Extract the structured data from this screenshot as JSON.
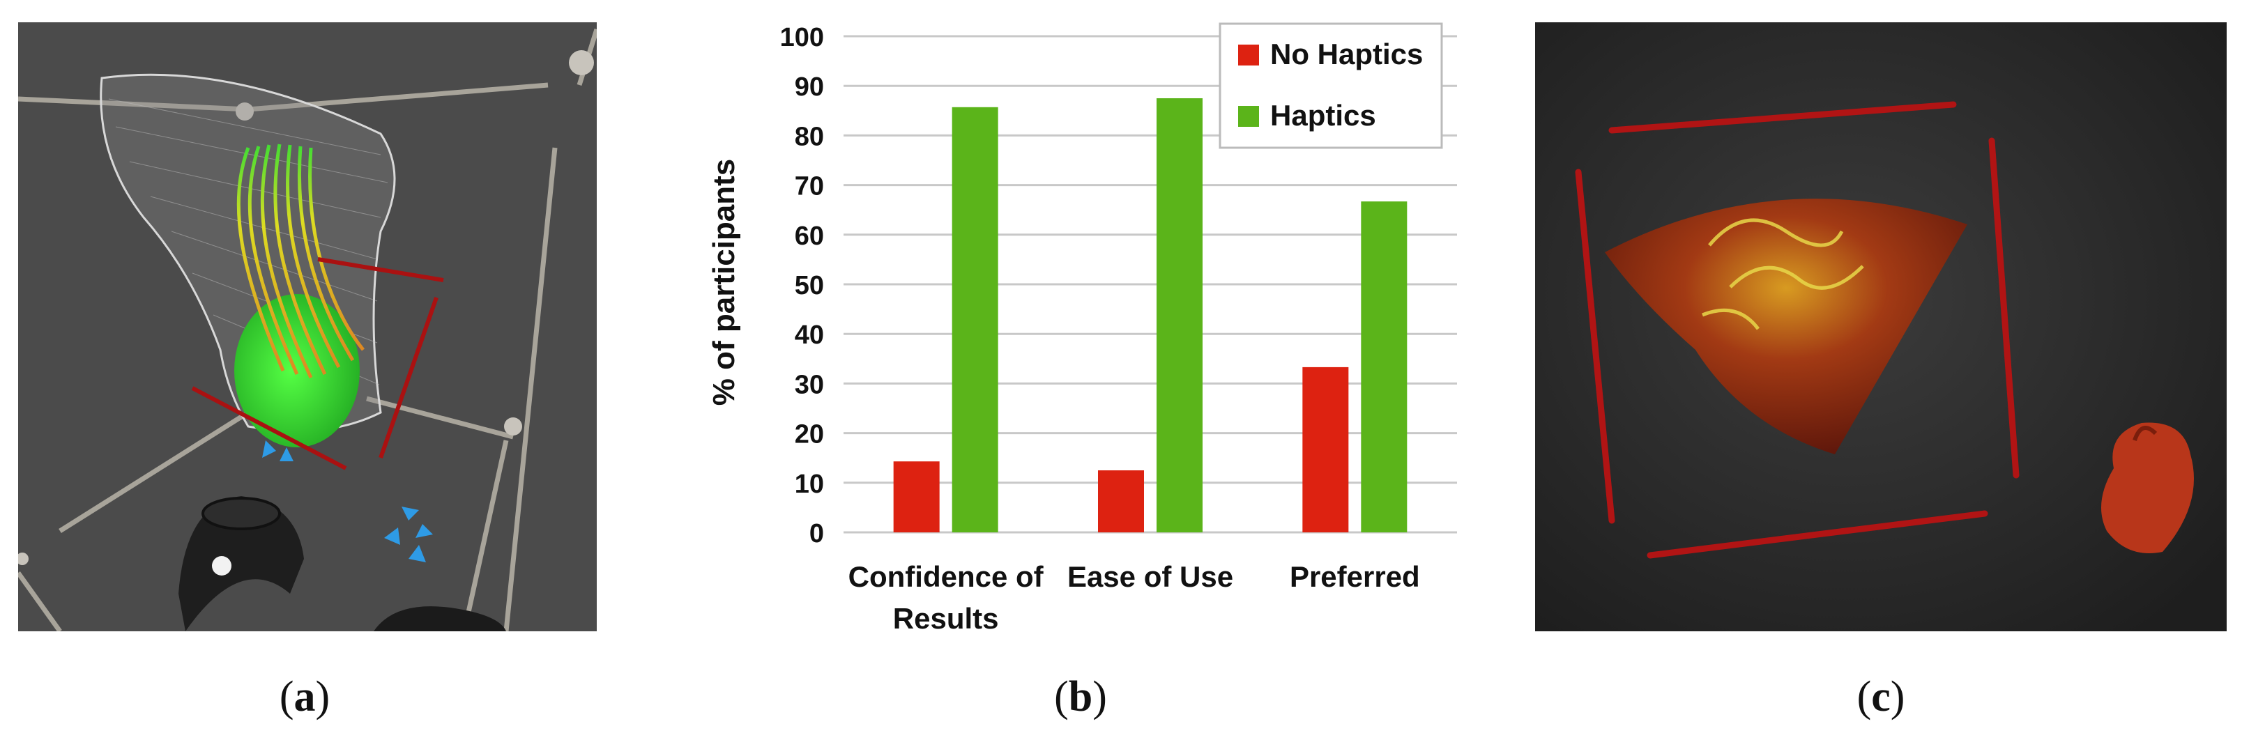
{
  "captions": {
    "a": "a",
    "b": "b",
    "c": "c"
  },
  "chart_data": {
    "type": "bar",
    "categories": [
      "Confidence of Results",
      "Ease of Use",
      "Preferred"
    ],
    "category_lines": [
      [
        "Confidence of",
        "Results"
      ],
      [
        "Ease of Use"
      ],
      [
        "Preferred"
      ]
    ],
    "series": [
      {
        "name": "No Haptics",
        "values": [
          14.3,
          12.5,
          33.3
        ],
        "color": "#dd2211"
      },
      {
        "name": "Haptics",
        "values": [
          85.7,
          87.5,
          66.7
        ],
        "color": "#5bb41a"
      }
    ],
    "ylabel": "% of participants",
    "xlabel": "",
    "ylim": [
      0,
      100
    ],
    "yticks": [
      0,
      10,
      20,
      30,
      40,
      50,
      60,
      70,
      80,
      90,
      100
    ],
    "grid": true,
    "legend_position": "top-right"
  },
  "images": {
    "a": "vr-flow-visualization-with-controllers",
    "c": "volume-rendered-ultrasound-with-heart-model"
  }
}
